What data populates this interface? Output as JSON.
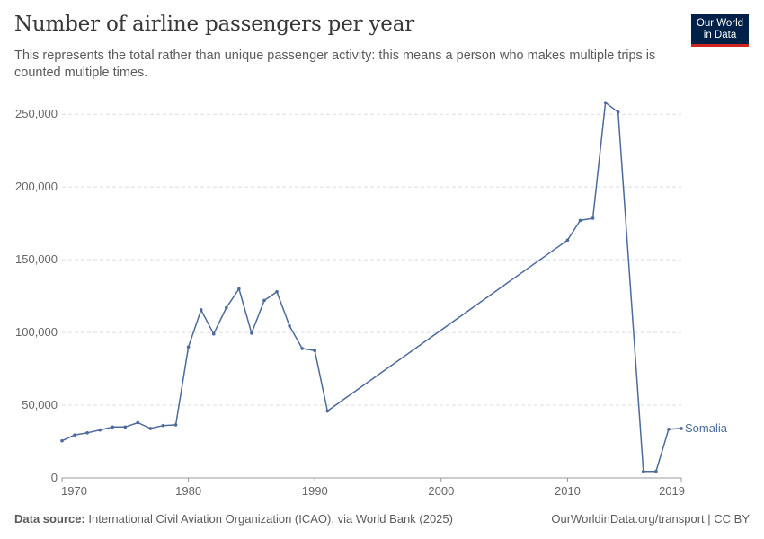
{
  "header": {
    "title": "Number of airline passengers per year",
    "subtitle": "This represents the total rather than unique passenger activity: this means a person who makes multiple trips is counted multiple times."
  },
  "logo": {
    "line1": "Our World",
    "line2": "in Data"
  },
  "footer": {
    "source_label": "Data source:",
    "source_text": "International Civil Aviation Organization (ICAO), via World Bank (2025)",
    "right_text": "OurWorldinData.org/transport | CC BY"
  },
  "colors": {
    "series": "#4c6a9c",
    "grid": "#dddddd",
    "axis": "#999999",
    "logo_bg": "#002147",
    "logo_accent": "#ce261e"
  },
  "chart_data": {
    "type": "line",
    "title": "Number of airline passengers per year",
    "xlabel": "",
    "ylabel": "",
    "xlim": [
      1970,
      2019
    ],
    "ylim": [
      0,
      260000
    ],
    "x_ticks": [
      1970,
      1980,
      1990,
      2000,
      2010,
      2019
    ],
    "y_ticks": [
      0,
      50000,
      100000,
      150000,
      200000,
      250000
    ],
    "y_tick_labels": [
      "0",
      "50,000",
      "100,000",
      "150,000",
      "200,000",
      "250,000"
    ],
    "grid": "horizontal dashed",
    "legend": "inline label at line end",
    "series": [
      {
        "name": "Somalia",
        "x": [
          1970,
          1971,
          1972,
          1973,
          1974,
          1975,
          1976,
          1977,
          1978,
          1979,
          1980,
          1981,
          1982,
          1983,
          1984,
          1985,
          1986,
          1987,
          1988,
          1989,
          1990,
          1991,
          2010,
          2011,
          2012,
          2013,
          2014,
          2016,
          2017,
          2018,
          2019
        ],
        "values": [
          25500,
          29500,
          31000,
          33000,
          35000,
          35000,
          38000,
          34000,
          36000,
          36500,
          90000,
          115500,
          99000,
          117000,
          130000,
          99500,
          122000,
          128000,
          104500,
          89000,
          87500,
          46000,
          163500,
          177000,
          178500,
          258000,
          251500,
          4500,
          4500,
          33500,
          34000
        ]
      }
    ]
  }
}
